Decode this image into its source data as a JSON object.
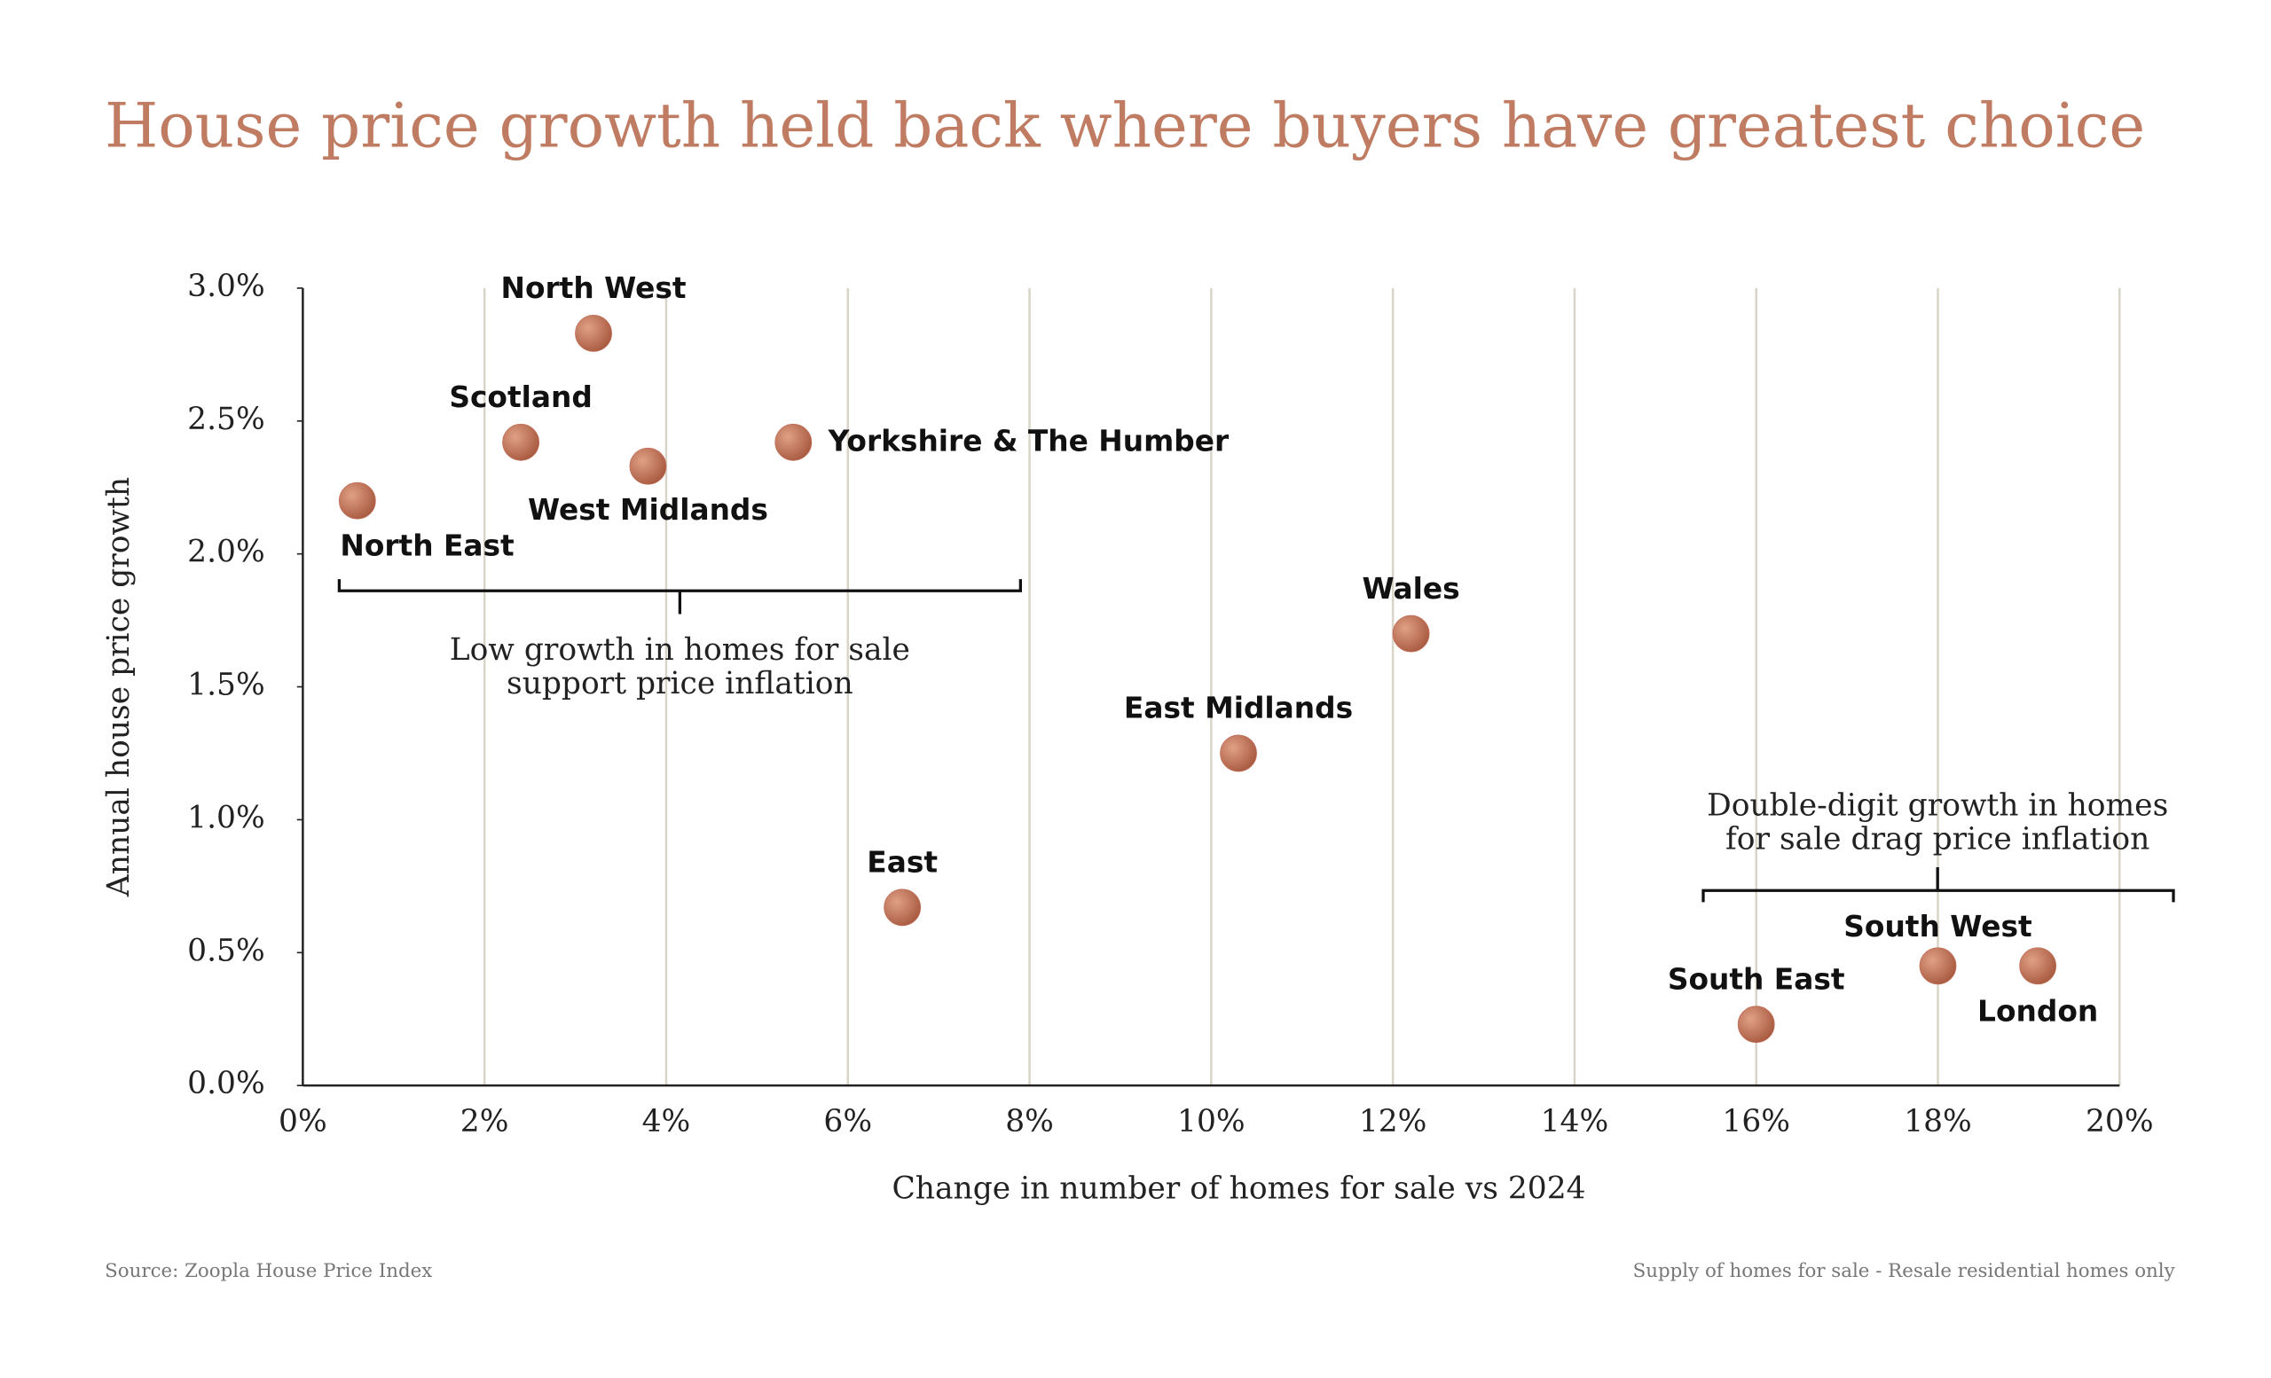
{
  "chart_data": {
    "type": "scatter",
    "title": "House price growth held back where buyers have greatest choice",
    "x_label": "Change in number of homes for sale vs 2024",
    "y_label": "Annual house price growth",
    "source": "Source:  Zoopla House Price Index",
    "note": "Supply of homes for sale - Resale residential homes only",
    "color": "#c2705a",
    "grid": true,
    "points": [
      {
        "name": "North West",
        "x": 3.2,
        "y": 2.83
      },
      {
        "name": "Scotland",
        "x": 2.4,
        "y": 2.42
      },
      {
        "name": "West Midlands",
        "x": 3.8,
        "y": 2.33
      },
      {
        "name": "Yorkshire & The Humber",
        "x": 5.4,
        "y": 2.42
      },
      {
        "name": "North East",
        "x": 0.6,
        "y": 2.2
      },
      {
        "name": "Wales",
        "x": 12.2,
        "y": 1.7
      },
      {
        "name": "East Midlands",
        "x": 10.3,
        "y": 1.25
      },
      {
        "name": "East",
        "x": 6.6,
        "y": 0.67
      },
      {
        "name": "South East",
        "x": 16.0,
        "y": 0.23
      },
      {
        "name": "South West",
        "x": 18.0,
        "y": 0.45
      },
      {
        "name": "London",
        "x": 19.1,
        "y": 0.45
      }
    ],
    "xlim": [
      0,
      20
    ],
    "xticks": [
      {
        "value": 0,
        "label": "0%"
      },
      {
        "value": 2,
        "label": "2%"
      },
      {
        "value": 4,
        "label": "4%"
      },
      {
        "value": 6,
        "label": "6%"
      },
      {
        "value": 8,
        "label": "8%"
      },
      {
        "value": 10,
        "label": "10%"
      },
      {
        "value": 12,
        "label": "12%"
      },
      {
        "value": 14,
        "label": "14%"
      },
      {
        "value": 16,
        "label": "16%"
      },
      {
        "value": 18,
        "label": "18%"
      },
      {
        "value": 20,
        "label": "20%"
      }
    ],
    "ylim": [
      0,
      3
    ],
    "yticks": [
      {
        "value": 0,
        "label": "0.0%"
      },
      {
        "value": 0.5,
        "label": "0.5%"
      },
      {
        "value": 1,
        "label": "1.0%"
      },
      {
        "value": 1.5,
        "label": "1.5%"
      },
      {
        "value": 2,
        "label": "2.0%"
      },
      {
        "value": 2.5,
        "label": "2.5%"
      },
      {
        "value": 3,
        "label": "3.0%"
      }
    ],
    "annotations": [
      {
        "lines": [
          "Low growth in homes for sale",
          "support price inflation"
        ]
      },
      {
        "lines": [
          "Double-digit growth in homes",
          "for sale drag price inflation"
        ]
      }
    ]
  }
}
